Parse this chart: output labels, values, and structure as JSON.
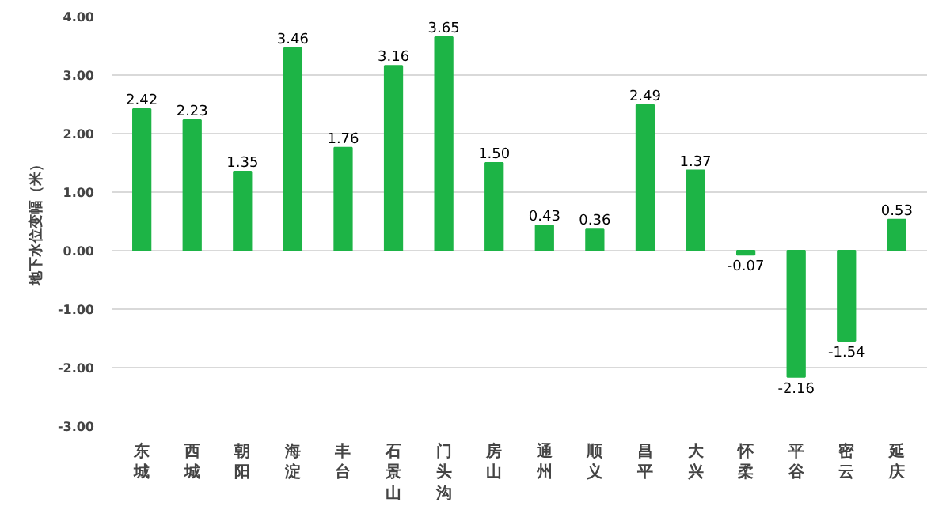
{
  "chart_data": {
    "type": "bar",
    "ylabel": "地下水位变幅（米）",
    "categories": [
      "东城",
      "西城",
      "朝阳",
      "海淀",
      "丰台",
      "石景山",
      "门头沟",
      "房山",
      "通州",
      "顺义",
      "昌平",
      "大兴",
      "怀柔",
      "平谷",
      "密云",
      "延庆"
    ],
    "values": [
      2.42,
      2.23,
      1.35,
      3.46,
      1.76,
      3.16,
      3.65,
      1.5,
      0.43,
      0.36,
      2.49,
      1.37,
      -0.07,
      -2.16,
      -1.54,
      0.53
    ],
    "value_labels": [
      "2.42",
      "2.23",
      "1.35",
      "3.46",
      "1.76",
      "3.16",
      "3.65",
      "1.50",
      "0.43",
      "0.36",
      "2.49",
      "1.37",
      "-0.07",
      "-2.16",
      "-1.54",
      "0.53"
    ],
    "color": "#1db446",
    "ylim": [
      -3,
      4
    ],
    "yticks": [
      {
        "value": -3,
        "label": "-3.00"
      },
      {
        "value": -2,
        "label": "-2.00"
      },
      {
        "value": -1,
        "label": "-1.00"
      },
      {
        "value": 0,
        "label": "0.00"
      },
      {
        "value": 1,
        "label": "1.00"
      },
      {
        "value": 2,
        "label": "2.00"
      },
      {
        "value": 3,
        "label": "3.00"
      },
      {
        "value": 4,
        "label": "4.00"
      }
    ],
    "grid": "y"
  }
}
